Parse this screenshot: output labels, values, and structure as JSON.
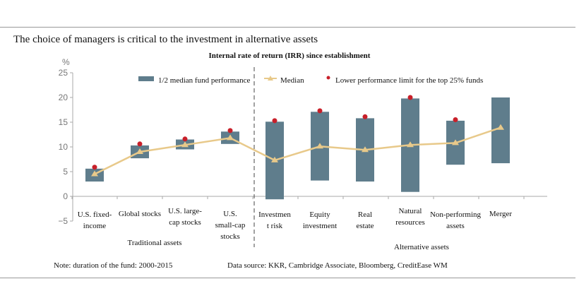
{
  "header": {
    "title": "The choice of managers is critical to the investment in alternative assets"
  },
  "footer": {
    "note": "Note: duration of the fund: 2000-2015",
    "source": "Data source: KKR, Cambridge Associate, Bloomberg, CreditEase WM"
  },
  "chart_data": {
    "type": "bar",
    "title": "Internal rate of return (IRR) since establishment",
    "ylabel": "%",
    "ylim": [
      -5,
      25
    ],
    "yticks": [
      "25",
      "20",
      "15",
      "10",
      "5",
      "0",
      "−5"
    ],
    "grid": false,
    "legend_position": "top",
    "categories": [
      "U.S. fixed-income",
      "Global stocks",
      "U.S. large-cap stocks",
      "U.S. small-cap stocks",
      "Investment risk",
      "Equity investment",
      "Real estate",
      "Natural resources",
      "Non-performing assets",
      "Merger"
    ],
    "category_labels": [
      [
        "U.S. fixed-",
        "income"
      ],
      [
        "Global stocks"
      ],
      [
        "U.S. large-",
        "cap stocks"
      ],
      [
        "U.S.",
        "small-cap",
        "stocks"
      ],
      [
        "Investmen",
        "t risk"
      ],
      [
        "Equity",
        "investment"
      ],
      [
        "Real",
        "estate"
      ],
      [
        "Natural",
        "resources"
      ],
      [
        "Non-performing",
        "assets"
      ],
      [
        "Merger"
      ]
    ],
    "groups": [
      {
        "label": "Traditional assets",
        "span": [
          0,
          3
        ]
      },
      {
        "label": "Alternative assets",
        "span": [
          4,
          9
        ]
      }
    ],
    "series": [
      {
        "name": "1/2 median fund performance",
        "type": "range-bar",
        "color": "#5f7d8c",
        "low": [
          3.0,
          7.7,
          9.5,
          10.6,
          -0.6,
          3.2,
          3.0,
          0.9,
          6.4,
          6.7
        ],
        "high": [
          5.6,
          10.3,
          11.5,
          13.1,
          15.1,
          17.1,
          15.8,
          19.8,
          15.3,
          20.0
        ]
      },
      {
        "name": "Median",
        "type": "line",
        "color": "#e8c98a",
        "values": [
          4.5,
          9.0,
          10.4,
          11.8,
          7.3,
          10.1,
          9.4,
          10.4,
          10.8,
          13.9
        ]
      },
      {
        "name": "Lower performance limit for the top 25% funds",
        "type": "scatter",
        "color": "#c8202a",
        "values": [
          5.9,
          10.6,
          11.6,
          13.3,
          15.3,
          17.3,
          16.1,
          20.0,
          15.5,
          null
        ]
      }
    ]
  }
}
